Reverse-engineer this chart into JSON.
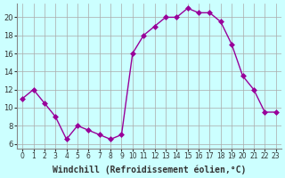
{
  "x": [
    0,
    1,
    2,
    3,
    4,
    5,
    6,
    7,
    8,
    9,
    10,
    11,
    12,
    13,
    14,
    15,
    16,
    17,
    18,
    19,
    20,
    21,
    22,
    23
  ],
  "y": [
    11,
    12,
    10.5,
    9,
    6.5,
    8,
    7.5,
    7,
    6.5,
    7,
    16,
    18,
    19,
    20,
    20,
    21,
    20.5,
    20.5,
    19.5,
    17,
    13.5,
    12,
    9.5,
    9.5
  ],
  "line_color": "#990099",
  "marker": "D",
  "marker_size": 3,
  "bg_color": "#ccffff",
  "grid_color": "#aaaaaa",
  "xlabel": "Windchill (Refroidissement éolien,°C)",
  "xlabel_fontsize": 7,
  "yticks": [
    6,
    8,
    10,
    12,
    14,
    16,
    18,
    20
  ],
  "xticks": [
    0,
    1,
    2,
    3,
    4,
    5,
    6,
    7,
    8,
    9,
    10,
    11,
    12,
    13,
    14,
    15,
    16,
    17,
    18,
    19,
    20,
    21,
    22,
    23
  ],
  "ylim": [
    5.5,
    21.5
  ],
  "xlim": [
    -0.5,
    23.5
  ]
}
